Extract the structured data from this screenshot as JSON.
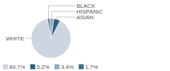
{
  "chart_data": {
    "type": "pie",
    "categories": [
      "WHITE",
      "ASIAN",
      "HISPANIC",
      "BLACK"
    ],
    "values": [
      89.7,
      5.2,
      3.4,
      1.7
    ],
    "value_labels": [
      "89.7%",
      "5.2%",
      "3.4%",
      "1.7%"
    ],
    "colors": [
      "#cdd5e0",
      "#2e5f7a",
      "#8faebe",
      "#3d6e85"
    ],
    "legend": "bottom-left"
  }
}
